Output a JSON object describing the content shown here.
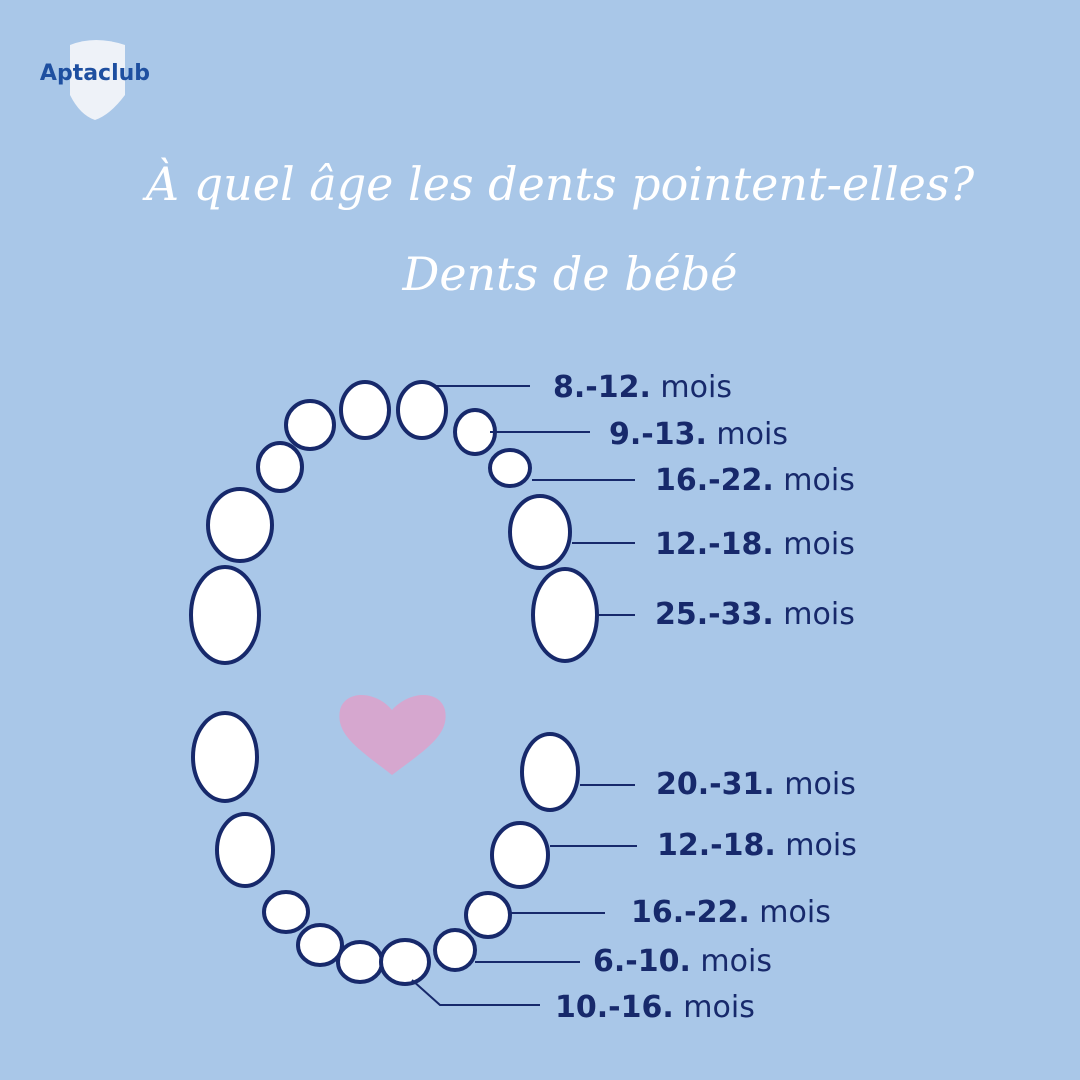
{
  "logo": "Aptaclub",
  "title": {
    "line1": "À quel âge les dents pointent-elles?",
    "line2": "Dents de bébé"
  },
  "upper_labels": [
    {
      "range": "8.-12.",
      "unit": "mois"
    },
    {
      "range": "9.-13.",
      "unit": "mois"
    },
    {
      "range": "16.-22.",
      "unit": "mois"
    },
    {
      "range": "12.-18.",
      "unit": "mois"
    },
    {
      "range": "25.-33.",
      "unit": "mois"
    }
  ],
  "lower_labels": [
    {
      "range": "20.-31.",
      "unit": "mois"
    },
    {
      "range": "12.-18.",
      "unit": "mois"
    },
    {
      "range": "16.-22.",
      "unit": "mois"
    },
    {
      "range": "6.-10.",
      "unit": "mois"
    },
    {
      "range": "10.-16.",
      "unit": "mois"
    }
  ]
}
